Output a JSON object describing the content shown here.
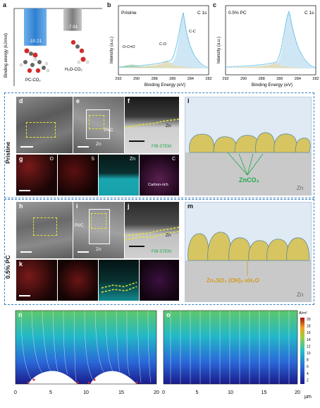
{
  "panels": {
    "a": "a",
    "b": "b",
    "c": "c",
    "d": "d",
    "e": "e",
    "f": "f",
    "g": "g",
    "h": "h",
    "i": "i",
    "j": "j",
    "k": "k",
    "l": "l",
    "m": "m",
    "n": "n",
    "o": "o"
  },
  "row_labels": {
    "pristine": "Pristine",
    "pc": "0.5% PC"
  },
  "panel_a": {
    "ylabel": "Binding energy (kJ/mol)",
    "bars": [
      {
        "value": -10.21,
        "label": "-10.21",
        "name": "PC-CO₂",
        "color": "#3d8fd8"
      },
      {
        "value": -7.91,
        "label": "-7.91",
        "name": "H₂O-CO₂",
        "color": "#9a9a9a"
      }
    ]
  },
  "panel_b": {
    "title": "Pristine",
    "tag": "C 1s",
    "xlabel": "Binding Energy (eV)",
    "ylabel": "Intensity (a.u.)",
    "peaks": [
      "O-C=O",
      "C-O",
      "C-C"
    ]
  },
  "panel_c": {
    "title": "0.5% PC",
    "tag": "C 1s",
    "xlabel": "Binding Energy (eV)",
    "ylabel": "Intensity (a.u.)"
  },
  "xps_ticks": [
    "292",
    "290",
    "288",
    "286",
    "284",
    "282"
  ],
  "micro": {
    "ptc": "Pt/C",
    "zn": "Zn",
    "fib": "FIB-STEM",
    "eds_labels": [
      "O",
      "S",
      "Zn",
      "C"
    ],
    "carbon_rich": "Carbon-rich"
  },
  "panel_l": {
    "product": "ZnCO₃",
    "substrate": "Zn"
  },
  "panel_m": {
    "product": "Zn₄SO₄ (OH)₆·xH₂O",
    "substrate": "Zn"
  },
  "field": {
    "unit": "A/m²",
    "colorbar_ticks": [
      "20",
      "18",
      "16",
      "14",
      "12",
      "10",
      "8",
      "6",
      "4",
      "2"
    ],
    "x_ticks": [
      "0",
      "5",
      "10",
      "15",
      "20"
    ],
    "x_unit": "μm"
  },
  "chart_data": [
    {
      "type": "bar",
      "categories": [
        "PC-CO₂",
        "H₂O-CO₂"
      ],
      "values": [
        -10.21,
        -7.91
      ],
      "ylabel": "Binding energy (kJ/mol)"
    },
    {
      "type": "line",
      "title": "Pristine",
      "xlabel": "Binding Energy (eV)",
      "ylabel": "Intensity (a.u.)",
      "xlim": [
        292,
        282
      ],
      "annotations": [
        "O-C=O",
        "C-O",
        "C-C",
        "C 1s"
      ]
    },
    {
      "type": "line",
      "title": "0.5% PC",
      "xlabel": "Binding Energy (eV)",
      "ylabel": "Intensity (a.u.)",
      "xlim": [
        292,
        282
      ],
      "annotations": [
        "C 1s"
      ]
    }
  ]
}
